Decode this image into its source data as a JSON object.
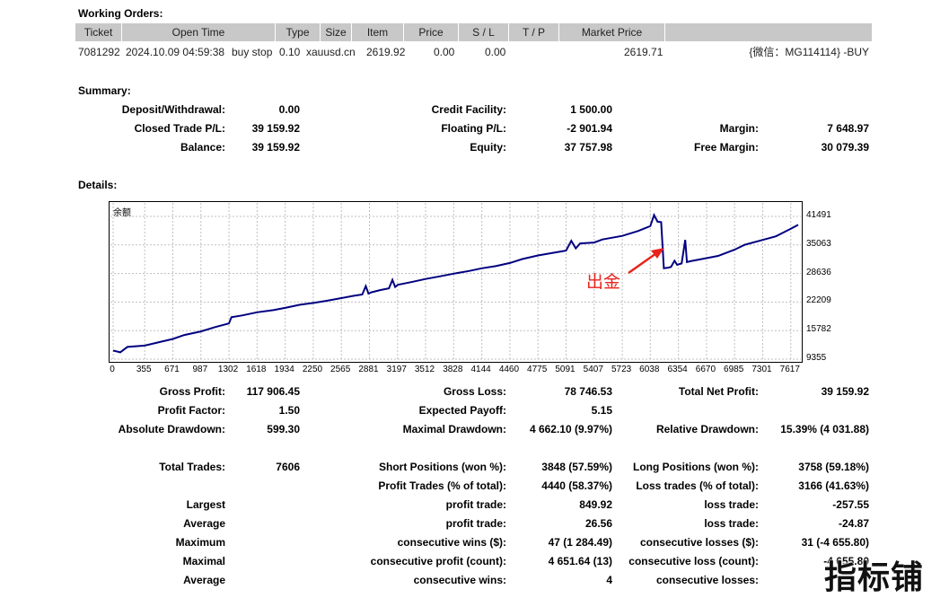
{
  "working_orders": {
    "title": "Working Orders:",
    "columns": [
      "Ticket",
      "Open Time",
      "Type",
      "Size",
      "Item",
      "Price",
      "S / L",
      "T / P",
      "Market Price",
      ""
    ],
    "rows": [
      {
        "ticket": "7081292",
        "open_time": "2024.10.09 04:59:38",
        "type": "buy stop",
        "size": "0.10",
        "item": "xauusd.cn",
        "price": "2619.92",
        "sl": "0.00",
        "tp": "0.00",
        "market_price": "2619.71",
        "comment": "{微信：MG114114} -BUY"
      }
    ]
  },
  "summary": {
    "title": "Summary:",
    "deposit_withdrawal": {
      "label": "Deposit/Withdrawal:",
      "value": "0.00"
    },
    "credit_facility": {
      "label": "Credit Facility:",
      "value": "1 500.00"
    },
    "closed_trade_pl": {
      "label": "Closed Trade P/L:",
      "value": "39 159.92"
    },
    "floating_pl": {
      "label": "Floating P/L:",
      "value": "-2 901.94"
    },
    "margin": {
      "label": "Margin:",
      "value": "7 648.97"
    },
    "balance": {
      "label": "Balance:",
      "value": "39 159.92"
    },
    "equity": {
      "label": "Equity:",
      "value": "37 757.98"
    },
    "free_margin": {
      "label": "Free Margin:",
      "value": "30 079.39"
    }
  },
  "details": {
    "title": "Details:",
    "gross_profit": {
      "label": "Gross Profit:",
      "value": "117 906.45"
    },
    "gross_loss": {
      "label": "Gross Loss:",
      "value": "78 746.53"
    },
    "total_net_profit": {
      "label": "Total Net Profit:",
      "value": "39 159.92"
    },
    "profit_factor": {
      "label": "Profit Factor:",
      "value": "1.50"
    },
    "expected_payoff": {
      "label": "Expected Payoff:",
      "value": "5.15"
    },
    "absolute_drawdown": {
      "label": "Absolute Drawdown:",
      "value": "599.30"
    },
    "maximal_drawdown": {
      "label": "Maximal Drawdown:",
      "value": "4 662.10 (9.97%)"
    },
    "relative_drawdown": {
      "label": "Relative Drawdown:",
      "value": "15.39% (4 031.88)"
    },
    "total_trades": {
      "label": "Total Trades:",
      "value": "7606"
    },
    "short_positions": {
      "label": "Short Positions (won %):",
      "value": "3848 (57.59%)"
    },
    "long_positions": {
      "label": "Long Positions (won %):",
      "value": "3758 (59.18%)"
    },
    "profit_trades": {
      "label": "Profit Trades (% of total):",
      "value": "4440 (58.37%)"
    },
    "loss_trades": {
      "label": "Loss trades (% of total):",
      "value": "3166 (41.63%)"
    },
    "largest_label": "Largest",
    "largest_profit": {
      "label": "profit trade:",
      "value": "849.92"
    },
    "largest_loss": {
      "label": "loss trade:",
      "value": "-257.55"
    },
    "average_label": "Average",
    "average_profit": {
      "label": "profit trade:",
      "value": "26.56"
    },
    "average_loss": {
      "label": "loss trade:",
      "value": "-24.87"
    },
    "maximum_label": "Maximum",
    "max_consec_wins": {
      "label": "consecutive wins ($):",
      "value": "47 (1 284.49)"
    },
    "max_consec_losses": {
      "label": "consecutive losses ($):",
      "value": "31 (-4 655.80)"
    },
    "maximal_label": "Maximal",
    "maximal_consec_profit": {
      "label": "consecutive profit (count):",
      "value": "4 651.64 (13)"
    },
    "maximal_consec_loss": {
      "label": "consecutive loss (count):",
      "value": "-4 655.80"
    },
    "average2_label": "Average",
    "avg_consec_wins": {
      "label": "consecutive wins:",
      "value": "4"
    },
    "avg_consec_losses": {
      "label": "consecutive losses:",
      "value": ""
    }
  },
  "chart_data": {
    "type": "line",
    "legend": "余额",
    "annotation": "出金",
    "colors": {
      "line": "#000080",
      "annotation": "#e8231c",
      "grid": "#bfbfbf"
    },
    "x_ticks": [
      0,
      355,
      671,
      987,
      1302,
      1618,
      1934,
      2250,
      2565,
      2881,
      3197,
      3512,
      3828,
      4144,
      4460,
      4775,
      5091,
      5407,
      5723,
      6038,
      6354,
      6670,
      6985,
      7301,
      7617
    ],
    "y_ticks": [
      9355,
      15782,
      22209,
      28636,
      35063,
      41491
    ],
    "xlim": [
      0,
      7700
    ],
    "ylim": [
      9355,
      41491
    ],
    "grid": true,
    "series": [
      {
        "x": [
          0,
          80,
          160,
          355,
          500,
          671,
          800,
          987,
          1150,
          1302,
          1330,
          1450,
          1618,
          1800,
          1934,
          2100,
          2250,
          2400,
          2565,
          2700,
          2800,
          2840,
          2870,
          2900,
          3000,
          3100,
          3140,
          3170,
          3200,
          3350,
          3512,
          3650,
          3828,
          4000,
          4144,
          4300,
          4460,
          4600,
          4775,
          4950,
          5091,
          5150,
          5200,
          5250,
          5407,
          5500,
          5723,
          5900,
          6038,
          6080,
          6120,
          6160,
          6190,
          6230,
          6270,
          6310,
          6340,
          6354,
          6390,
          6430,
          6450,
          6490,
          6670,
          6800,
          6985,
          7100,
          7301,
          7450,
          7617,
          7700
        ],
        "values": [
          11300,
          10900,
          12100,
          12400,
          13100,
          13900,
          14800,
          15600,
          16600,
          17400,
          18800,
          19200,
          19900,
          20400,
          20900,
          21600,
          22000,
          22500,
          23100,
          23600,
          23900,
          25800,
          24100,
          24400,
          24900,
          25300,
          27200,
          25600,
          26100,
          26700,
          27400,
          27900,
          28600,
          29200,
          29800,
          30300,
          31000,
          31900,
          32700,
          33300,
          33800,
          36000,
          34300,
          35400,
          35600,
          36300,
          37100,
          38200,
          39300,
          41800,
          40300,
          40200,
          29800,
          29900,
          30100,
          31500,
          30600,
          30700,
          30900,
          36200,
          31200,
          31400,
          32100,
          32600,
          34000,
          35100,
          36200,
          37000,
          38700,
          39600
        ]
      }
    ]
  }
}
